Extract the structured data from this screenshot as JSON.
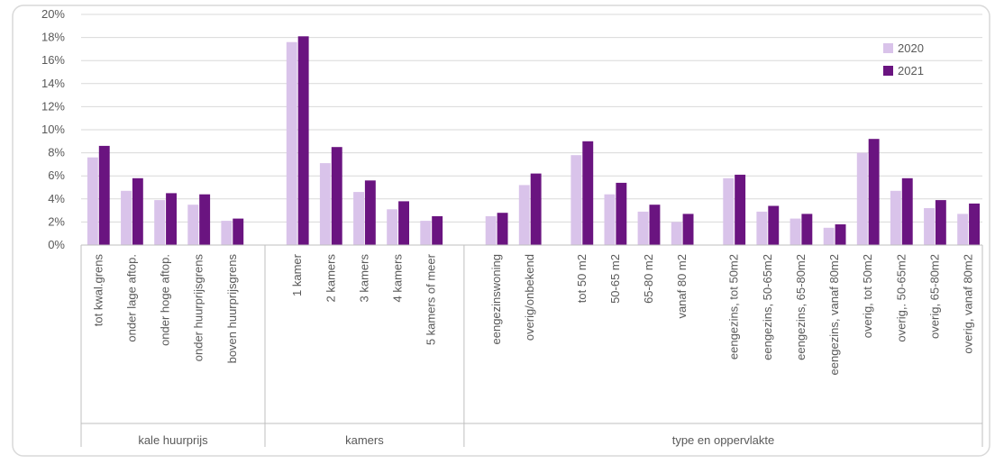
{
  "chart_data": {
    "type": "bar",
    "ylim": [
      0,
      20
    ],
    "yticks": [
      "0%",
      "2%",
      "4%",
      "6%",
      "8%",
      "10%",
      "12%",
      "14%",
      "16%",
      "18%",
      "20%"
    ],
    "grid": true,
    "legend_position": "top-right",
    "categories": [
      "tot kwal.grens",
      "onder lage aftop.",
      "onder hoge aftop.",
      "onder huurprijsgrens",
      "boven huurprijsgrens",
      "1 kamer",
      "2 kamers",
      "3 kamers",
      "4 kamers",
      "5 kamers of meer",
      "eengezinswoning",
      "overig/onbekend",
      "tot 50 m2",
      "50-65 m2",
      "65-80 m2",
      "vanaf 80 m2",
      "eengezins, tot 50m2",
      "eengezins, 50-65m2",
      "eengezins, 65-80m2",
      "eengezins, vanaf 80m2",
      "overig, tot 50m2",
      "overig,. 50-65m2",
      "overig, 65-80m2",
      "overig, vanaf 80m2"
    ],
    "groups": [
      {
        "label": "kale huurprijs",
        "start": 0,
        "end": 4
      },
      {
        "label": "kamers",
        "start": 5,
        "end": 9
      },
      {
        "label": "type en oppervlakte",
        "start": 10,
        "end": 23
      }
    ],
    "series": [
      {
        "name": "2020",
        "color": "#d9c3ea",
        "values": [
          7.6,
          4.7,
          3.9,
          3.5,
          2.1,
          17.6,
          7.1,
          4.6,
          3.1,
          2.1,
          2.5,
          5.2,
          7.8,
          4.4,
          2.9,
          2.0,
          5.8,
          2.9,
          2.3,
          1.5,
          8.0,
          4.7,
          3.2,
          2.7
        ]
      },
      {
        "name": "2021",
        "color": "#6a1480",
        "values": [
          8.6,
          5.8,
          4.5,
          4.4,
          2.3,
          18.1,
          8.5,
          5.6,
          3.8,
          2.5,
          2.8,
          6.2,
          9.0,
          5.4,
          3.5,
          2.7,
          6.1,
          3.4,
          2.7,
          1.8,
          9.2,
          5.8,
          3.9,
          3.6
        ]
      }
    ]
  }
}
